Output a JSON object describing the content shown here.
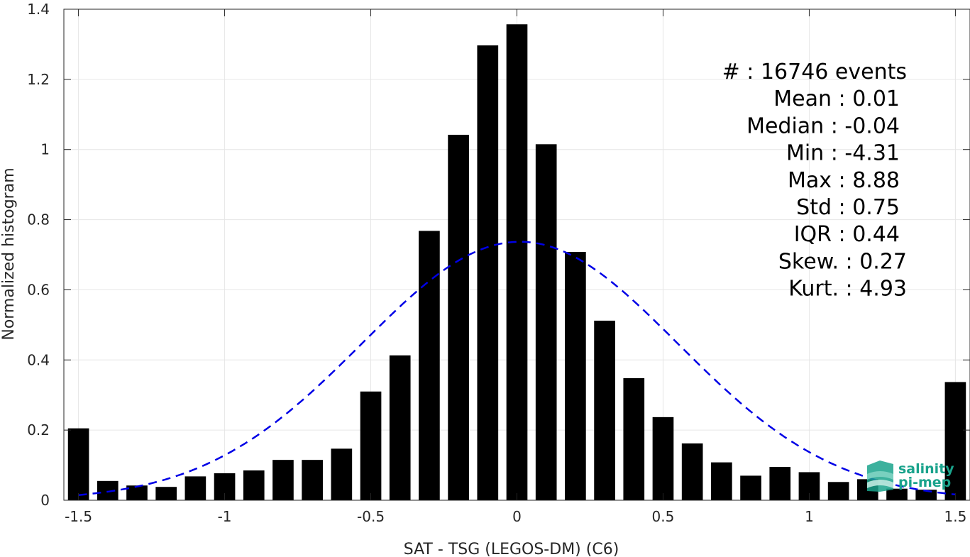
{
  "chart_data": {
    "type": "bar",
    "xlabel": "SAT - TSG (LEGOS-DM) (C6)",
    "ylabel": "Normalized histogram",
    "xlim": [
      -1.55,
      1.55
    ],
    "ylim": [
      0,
      1.4
    ],
    "xticks": [
      -1.5,
      -1,
      -0.5,
      0,
      0.5,
      1,
      1.5
    ],
    "xtick_labels": [
      "-1.5",
      "-1",
      "-0.5",
      "0",
      "0.5",
      "1",
      "1.5"
    ],
    "yticks": [
      0,
      0.2,
      0.4,
      0.6,
      0.8,
      1,
      1.2,
      1.4
    ],
    "ytick_labels": [
      "0",
      "0.2",
      "0.4",
      "0.6",
      "0.8",
      "1",
      "1.2",
      "1.4"
    ],
    "grid": true,
    "bar_color": "#000000",
    "bars": {
      "x": [
        -1.5,
        -1.4,
        -1.3,
        -1.2,
        -1.1,
        -1.0,
        -0.9,
        -0.8,
        -0.7,
        -0.6,
        -0.5,
        -0.4,
        -0.3,
        -0.2,
        -0.1,
        0.0,
        0.1,
        0.2,
        0.3,
        0.4,
        0.5,
        0.6,
        0.7,
        0.8,
        0.9,
        1.0,
        1.1,
        1.2,
        1.3,
        1.4,
        1.5
      ],
      "values": [
        0.205,
        0.055,
        0.042,
        0.038,
        0.068,
        0.077,
        0.085,
        0.115,
        0.115,
        0.147,
        0.31,
        0.413,
        0.768,
        1.042,
        1.297,
        1.357,
        1.015,
        0.708,
        0.512,
        0.348,
        0.237,
        0.162,
        0.108,
        0.07,
        0.095,
        0.08,
        0.052,
        0.06,
        0.033,
        0.03,
        0.337
      ]
    },
    "fit_curve": {
      "style": "dashed",
      "color": "#0000e6",
      "mean": 0.01,
      "std": 0.54,
      "peak": 0.737,
      "x_range": [
        -1.5,
        1.5
      ]
    },
    "stats": [
      "#  : 16746 events",
      "Mean : 0.01",
      "Median : -0.04",
      "Min : -4.31",
      "Max : 8.88",
      "Std : 0.75",
      "IQR : 0.44",
      "Skew. : 0.27",
      "Kurt. : 4.93"
    ]
  },
  "logo": {
    "line1": "salinity",
    "line2": "pi-mep",
    "color": "#1aa38c"
  }
}
